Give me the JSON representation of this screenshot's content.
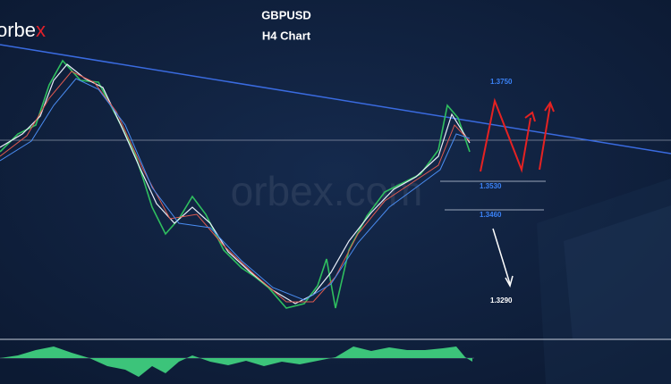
{
  "logo": {
    "text": "orbe",
    "accent": "x"
  },
  "watermark": "orbex.com",
  "title": "GBPUSD",
  "subtitle": "H4 Chart",
  "levels": [
    "1.3750",
    "1.3530",
    "1.3460",
    "1.3290"
  ]
}
